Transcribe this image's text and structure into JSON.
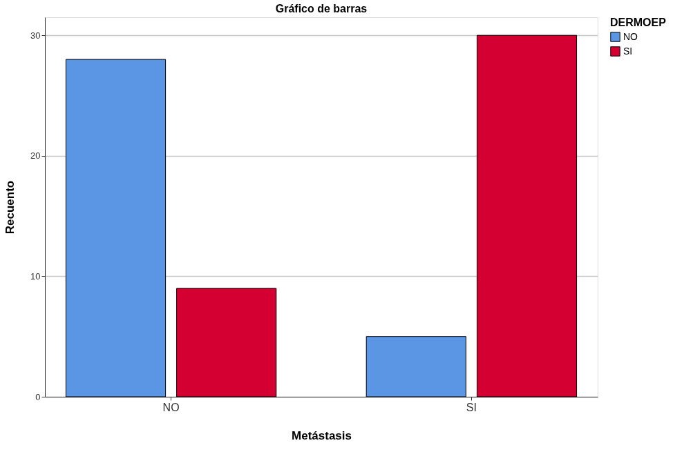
{
  "chart_data": {
    "type": "bar",
    "title": "Gráfico de barras",
    "xlabel": "Metástasis",
    "ylabel": "Recuento",
    "legend_title": "DERMOEP",
    "categories": [
      "NO",
      "SI"
    ],
    "series": [
      {
        "name": "NO",
        "color": "#5b96e5",
        "values": [
          28,
          5
        ]
      },
      {
        "name": "SI",
        "color": "#d50032",
        "values": [
          9,
          30
        ]
      }
    ],
    "ylim": [
      0,
      31.5
    ],
    "yticks": [
      0,
      10,
      20,
      30
    ],
    "grid": "y",
    "legend": "top right"
  }
}
